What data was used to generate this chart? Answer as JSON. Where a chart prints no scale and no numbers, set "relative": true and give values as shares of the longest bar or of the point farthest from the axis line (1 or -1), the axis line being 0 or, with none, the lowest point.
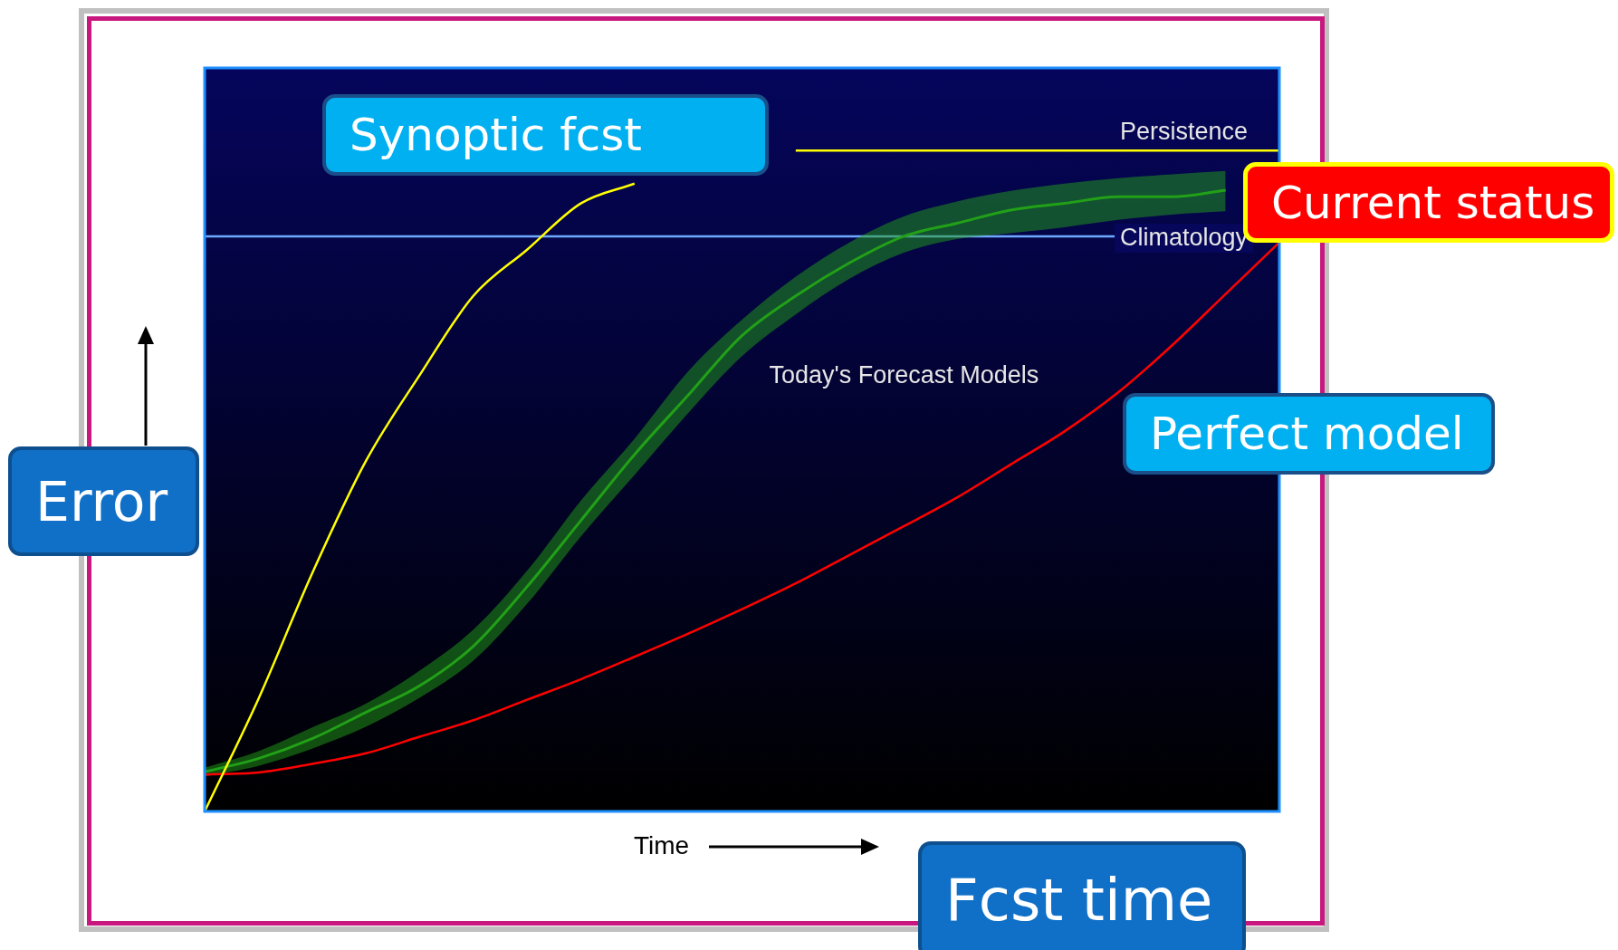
{
  "chart_data": {
    "type": "line",
    "relative": true,
    "xlabel": "Time",
    "categories": [
      null,
      null,
      null,
      null,
      null,
      null,
      null,
      null,
      null,
      null,
      null,
      null,
      null,
      null,
      null,
      null,
      null,
      null,
      null,
      null,
      null
    ],
    "series": [
      {
        "name": "Persistence",
        "color": "#ffff00",
        "values": [
          0,
          0.17,
          0.36,
          0.53,
          0.66,
          0.78,
          0.85,
          0.92,
          0.95,
          null,
          null,
          1,
          1,
          1,
          1,
          1,
          1,
          1,
          1,
          1,
          1
        ]
      },
      {
        "name": "Today's Forecast Models",
        "type": "line",
        "color": "#22a018",
        "values": [
          0.06,
          0.08,
          0.11,
          0.15,
          0.19,
          0.25,
          0.34,
          0.44,
          0.54,
          0.63,
          0.72,
          0.78,
          0.83,
          0.87,
          0.89,
          0.91,
          0.92,
          0.93,
          0.93,
          0.94,
          null
        ],
        "lower": [
          0.053,
          0.069,
          0.095,
          0.128,
          0.172,
          0.228,
          0.314,
          0.416,
          0.509,
          0.603,
          0.689,
          0.752,
          0.806,
          0.845,
          0.866,
          0.875,
          0.884,
          0.895,
          0.903,
          0.908,
          null
        ],
        "upper": [
          0.066,
          0.091,
          0.127,
          0.163,
          0.213,
          0.275,
          0.364,
          0.47,
          0.564,
          0.666,
          0.744,
          0.809,
          0.861,
          0.9,
          0.923,
          0.939,
          0.95,
          0.958,
          0.964,
          0.969,
          null
        ]
      },
      {
        "name": "Perfect model",
        "color": "#ff0000",
        "values": [
          0.056,
          0.059,
          0.072,
          0.088,
          0.113,
          0.138,
          0.169,
          0.2,
          0.234,
          0.269,
          0.306,
          0.345,
          0.388,
          0.431,
          0.475,
          0.525,
          0.575,
          0.634,
          0.705,
          0.783,
          0.861
        ]
      }
    ],
    "ref_lines": [
      {
        "axis": "y",
        "value": 0.87,
        "label": "Climatology",
        "color": "#6fa8ff"
      }
    ],
    "annotations": [
      "Synoptic fcst",
      "Current status",
      "Error",
      "Fcst time"
    ],
    "legend": false
  }
}
